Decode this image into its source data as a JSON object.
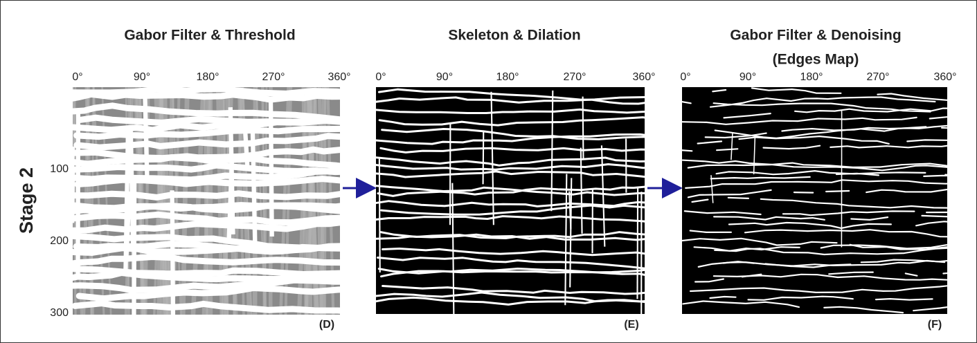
{
  "stage_label": "Stage 2",
  "panels": [
    {
      "title": "Gabor Filter & Threshold",
      "x_ticks": [
        "0°",
        "90°",
        "180°",
        "270°",
        "360°"
      ],
      "y_ticks": [
        100,
        200,
        300
      ],
      "label": "(D)"
    },
    {
      "title": "Skeleton & Dilation",
      "x_ticks": [
        "0°",
        "90°",
        "180°",
        "270°",
        "360°"
      ],
      "label": "(E)"
    },
    {
      "title": "Gabor Filter & Denoising",
      "subtitle": "(Edges Map)",
      "x_ticks": [
        "0°",
        "90°",
        "180°",
        "270°",
        "360°"
      ],
      "label": "(F)"
    }
  ]
}
